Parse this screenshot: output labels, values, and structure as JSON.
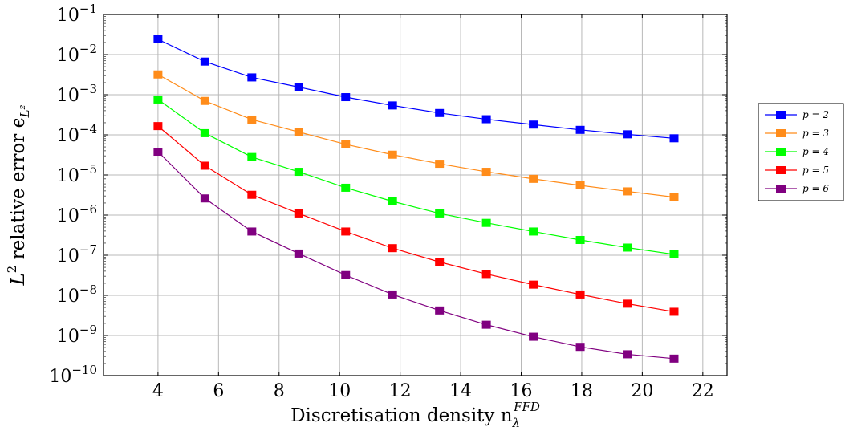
{
  "chart_data": {
    "type": "line",
    "xlabel": "Discretisation density n",
    "xlabel_sub": "λ",
    "xlabel_sup": "FFD",
    "ylabel": "L",
    "ylabel_sup": "2",
    "ylabel_rest": " relative error ϵ",
    "ylabel_sub": "L²",
    "xlim": [
      2.2,
      22.8
    ],
    "xticks": [
      4,
      6,
      8,
      10,
      12,
      14,
      16,
      18,
      20,
      22
    ],
    "xtick_labels": [
      "4",
      "6",
      "8",
      "10",
      "12",
      "14",
      "16",
      "18",
      "20",
      "22"
    ],
    "yscale": "log",
    "ylim": [
      1e-10,
      0.1
    ],
    "yticks": [
      0.1,
      0.01,
      0.001,
      0.0001,
      1e-05,
      1e-06,
      1e-07,
      1e-08,
      1e-09,
      1e-10
    ],
    "ytick_labels": [
      {
        "base": "10",
        "exp": "−1"
      },
      {
        "base": "10",
        "exp": "−2"
      },
      {
        "base": "10",
        "exp": "−3"
      },
      {
        "base": "10",
        "exp": "−4"
      },
      {
        "base": "10",
        "exp": "−5"
      },
      {
        "base": "10",
        "exp": "−6"
      },
      {
        "base": "10",
        "exp": "−7"
      },
      {
        "base": "10",
        "exp": "−8"
      },
      {
        "base": "10",
        "exp": "−9"
      },
      {
        "base": "10",
        "exp": "−10"
      }
    ],
    "grid": true,
    "legend_position": "outside-right",
    "x": [
      4,
      5.55,
      7.1,
      8.65,
      10.2,
      11.75,
      13.3,
      14.85,
      16.4,
      17.95,
      19.5,
      21.05
    ],
    "series": [
      {
        "name": "p = 2",
        "color": "#0000ff",
        "values": [
          0.024,
          0.0067,
          0.0027,
          0.00155,
          0.00087,
          0.00054,
          0.00035,
          0.000245,
          0.00018,
          0.000133,
          0.000103,
          8.2e-05
        ]
      },
      {
        "name": "p = 3",
        "color": "#ff8c1a",
        "values": [
          0.0032,
          0.0007,
          0.00024,
          0.000118,
          5.8e-05,
          3.2e-05,
          1.9e-05,
          1.2e-05,
          8e-06,
          5.5e-06,
          3.9e-06,
          2.8e-06
        ]
      },
      {
        "name": "p = 4",
        "color": "#00ff00",
        "values": [
          0.00076,
          0.00011,
          2.8e-05,
          1.2e-05,
          4.8e-06,
          2.2e-06,
          1.1e-06,
          6.4e-07,
          3.9e-07,
          2.4e-07,
          1.55e-07,
          1.05e-07
        ]
      },
      {
        "name": "p = 5",
        "color": "#ff0000",
        "values": [
          0.000165,
          1.7e-05,
          3.2e-06,
          1.1e-06,
          3.9e-07,
          1.5e-07,
          6.8e-08,
          3.4e-08,
          1.85e-08,
          1.05e-08,
          6.2e-09,
          3.9e-09
        ]
      },
      {
        "name": "p = 6",
        "color": "#800080",
        "values": [
          3.8e-05,
          2.6e-06,
          3.9e-07,
          1.1e-07,
          3.2e-08,
          1.05e-08,
          4.2e-09,
          1.85e-09,
          9.3e-10,
          5.2e-10,
          3.4e-10,
          2.65e-10
        ]
      }
    ]
  }
}
